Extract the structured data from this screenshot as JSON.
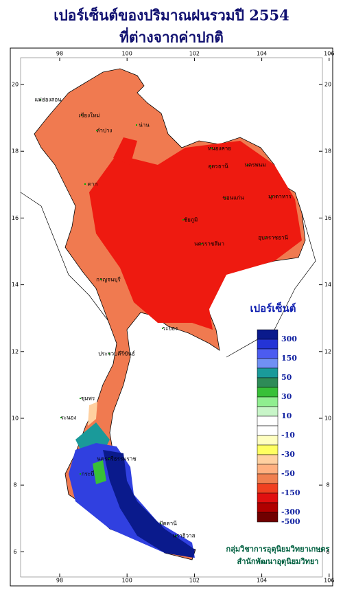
{
  "title": [
    "เปอร์เซ็นต์ของปริมาณฝนรวมปี 2554",
    "ที่ต่างจากค่าปกติ"
  ],
  "map": {
    "lon_ticks": [
      98,
      100,
      102,
      104,
      106
    ],
    "lat_ticks": [
      20,
      18,
      16,
      14,
      12,
      10,
      8,
      6
    ],
    "places": [
      "แม่ฮ่องสอน",
      "เชียงใหม่",
      "ลำปาง",
      "น่าน",
      "ตาก",
      "หนองคาย",
      "อุดรธานี",
      "นครพนม",
      "ขอนแก่น",
      "มุกดาหาร",
      "ชัยภูมิ",
      "นครราชสีมา",
      "อุบลราชธานี",
      "กาญจนบุรี",
      "ระยอง",
      "ประจวบคีรีขันธ์",
      "ชุมพร",
      "ระนอง",
      "นครศรีธรรมราช",
      "กระบี่",
      "ปัตตานี",
      "นราธิวาส"
    ]
  },
  "legend": {
    "title": "เปอร์เซ็นต์",
    "labels": [
      300,
      150,
      50,
      30,
      10,
      -10,
      -30,
      -50,
      -150,
      -300,
      -500
    ],
    "colors": [
      "#0a1a8c",
      "#2434d6",
      "#4c5cf0",
      "#7090f4",
      "#1a9a9a",
      "#2e8b57",
      "#38c038",
      "#90ee90",
      "#c8f5c8",
      "#ffffff",
      "#ffffff",
      "#ffffc0",
      "#ffff60",
      "#ffd0a0",
      "#ffb080",
      "#f08050",
      "#f04020",
      "#e01010",
      "#b00000",
      "#700000"
    ]
  },
  "credits": [
    "กลุ่มวิชาการอุตุนิยมวิทยาเกษตร",
    "สำนักพัฒนาอุตุนิยมวิทยา"
  ]
}
